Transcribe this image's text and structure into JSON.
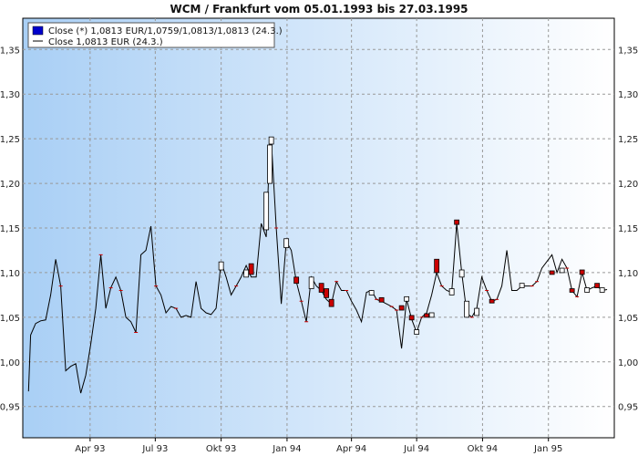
{
  "chart_data": {
    "type": "line",
    "title": "WCM / Frankfurt vom 05.01.1993 bis 27.03.1995",
    "xlabel": "",
    "ylabel": "",
    "ylim": [
      0.915,
      1.385
    ],
    "y_ticks": [
      0.95,
      1.0,
      1.05,
      1.1,
      1.15,
      1.2,
      1.25,
      1.3,
      1.35
    ],
    "y_tick_labels": [
      "0,95",
      "1,00",
      "1,05",
      "1,10",
      "1,15",
      "1,20",
      "1,25",
      "1,30",
      "1,35"
    ],
    "x_ticks": [
      {
        "label": "Apr 93",
        "date": "1993-04-01"
      },
      {
        "label": "Jul 93",
        "date": "1993-07-01"
      },
      {
        "label": "Okt 93",
        "date": "1993-10-01"
      },
      {
        "label": "Jan 94",
        "date": "1994-01-01"
      },
      {
        "label": "Apr 94",
        "date": "1994-04-01"
      },
      {
        "label": "Jul 94",
        "date": "1994-07-01"
      },
      {
        "label": "Okt 94",
        "date": "1994-10-01"
      },
      {
        "label": "Jan 95",
        "date": "1995-01-01"
      }
    ],
    "x_range": [
      "1992-12-28",
      "1995-04-03"
    ],
    "grid": true,
    "legend_position": "top-left",
    "legend": [
      {
        "symbol": "box",
        "color": "#0000cc",
        "label": "Close (*) 1,0813 EUR/1,0759/1,0813/1,0813 (24.3.)"
      },
      {
        "symbol": "line",
        "color": "#000000",
        "label": "Close 1,0813 EUR (24.3.)"
      }
    ],
    "colors": {
      "up_candle": "#ffffff",
      "down_candle": "#cc0000",
      "line": "#000000",
      "background_left": "#a9cff5",
      "background_right": "#ffffff"
    },
    "series": [
      {
        "name": "Close",
        "points": [
          [
            "1993-01-05",
            0.967
          ],
          [
            "1993-01-08",
            1.03
          ],
          [
            "1993-01-15",
            1.043
          ],
          [
            "1993-01-22",
            1.046
          ],
          [
            "1993-01-29",
            1.047
          ],
          [
            "1993-02-05",
            1.075
          ],
          [
            "1993-02-12",
            1.115
          ],
          [
            "1993-02-19",
            1.085
          ],
          [
            "1993-02-26",
            0.99
          ],
          [
            "1993-03-05",
            0.995
          ],
          [
            "1993-03-12",
            0.998
          ],
          [
            "1993-03-19",
            0.965
          ],
          [
            "1993-03-26",
            0.985
          ],
          [
            "1993-04-02",
            1.02
          ],
          [
            "1993-04-09",
            1.06
          ],
          [
            "1993-04-16",
            1.12
          ],
          [
            "1993-04-23",
            1.06
          ],
          [
            "1993-04-30",
            1.083
          ],
          [
            "1993-05-07",
            1.095
          ],
          [
            "1993-05-14",
            1.08
          ],
          [
            "1993-05-21",
            1.05
          ],
          [
            "1993-05-28",
            1.045
          ],
          [
            "1993-06-04",
            1.033
          ],
          [
            "1993-06-11",
            1.12
          ],
          [
            "1993-06-18",
            1.125
          ],
          [
            "1993-06-25",
            1.152
          ],
          [
            "1993-07-02",
            1.085
          ],
          [
            "1993-07-09",
            1.075
          ],
          [
            "1993-07-16",
            1.055
          ],
          [
            "1993-07-23",
            1.062
          ],
          [
            "1993-07-30",
            1.06
          ],
          [
            "1993-08-06",
            1.05
          ],
          [
            "1993-08-13",
            1.052
          ],
          [
            "1993-08-20",
            1.05
          ],
          [
            "1993-08-27",
            1.09
          ],
          [
            "1993-09-03",
            1.06
          ],
          [
            "1993-09-10",
            1.055
          ],
          [
            "1993-09-17",
            1.053
          ],
          [
            "1993-09-24",
            1.06
          ],
          [
            "1993-10-01",
            1.112
          ],
          [
            "1993-10-08",
            1.095
          ],
          [
            "1993-10-15",
            1.075
          ],
          [
            "1993-10-22",
            1.085
          ],
          [
            "1993-10-29",
            1.095
          ],
          [
            "1993-11-05",
            1.108
          ],
          [
            "1993-11-12",
            1.095
          ],
          [
            "1993-11-19",
            1.095
          ],
          [
            "1993-11-26",
            1.155
          ],
          [
            "1993-12-03",
            1.14
          ],
          [
            "1993-12-08",
            1.243
          ],
          [
            "1993-12-10",
            1.25
          ],
          [
            "1993-12-17",
            1.15
          ],
          [
            "1993-12-24",
            1.065
          ],
          [
            "1993-12-31",
            1.135
          ],
          [
            "1994-01-07",
            1.125
          ],
          [
            "1994-01-14",
            1.09
          ],
          [
            "1994-01-21",
            1.068
          ],
          [
            "1994-01-28",
            1.045
          ],
          [
            "1994-02-04",
            1.095
          ],
          [
            "1994-02-11",
            1.085
          ],
          [
            "1994-02-18",
            1.08
          ],
          [
            "1994-02-25",
            1.07
          ],
          [
            "1994-03-04",
            1.065
          ],
          [
            "1994-03-11",
            1.09
          ],
          [
            "1994-03-18",
            1.08
          ],
          [
            "1994-03-25",
            1.08
          ],
          [
            "1994-04-01",
            1.068
          ],
          [
            "1994-04-08",
            1.058
          ],
          [
            "1994-04-15",
            1.045
          ],
          [
            "1994-04-22",
            1.078
          ],
          [
            "1994-04-29",
            1.08
          ],
          [
            "1994-05-06",
            1.07
          ],
          [
            "1994-05-13",
            1.068
          ],
          [
            "1994-05-20",
            1.065
          ],
          [
            "1994-05-27",
            1.062
          ],
          [
            "1994-06-03",
            1.058
          ],
          [
            "1994-06-10",
            1.015
          ],
          [
            "1994-06-17",
            1.07
          ],
          [
            "1994-06-24",
            1.048
          ],
          [
            "1994-07-01",
            1.033
          ],
          [
            "1994-07-08",
            1.05
          ],
          [
            "1994-07-15",
            1.055
          ],
          [
            "1994-07-22",
            1.075
          ],
          [
            "1994-07-29",
            1.1
          ],
          [
            "1994-08-05",
            1.085
          ],
          [
            "1994-08-12",
            1.08
          ],
          [
            "1994-08-19",
            1.078
          ],
          [
            "1994-08-26",
            1.155
          ],
          [
            "1994-09-02",
            1.1
          ],
          [
            "1994-09-09",
            1.055
          ],
          [
            "1994-09-16",
            1.05
          ],
          [
            "1994-09-23",
            1.06
          ],
          [
            "1994-09-30",
            1.095
          ],
          [
            "1994-10-07",
            1.08
          ],
          [
            "1994-10-14",
            1.068
          ],
          [
            "1994-10-21",
            1.07
          ],
          [
            "1994-10-28",
            1.085
          ],
          [
            "1994-11-04",
            1.125
          ],
          [
            "1994-11-11",
            1.08
          ],
          [
            "1994-11-18",
            1.08
          ],
          [
            "1994-11-25",
            1.085
          ],
          [
            "1994-12-02",
            1.085
          ],
          [
            "1994-12-09",
            1.085
          ],
          [
            "1994-12-16",
            1.09
          ],
          [
            "1994-12-23",
            1.105
          ],
          [
            "1995-01-06",
            1.12
          ],
          [
            "1995-01-13",
            1.1
          ],
          [
            "1995-01-20",
            1.115
          ],
          [
            "1995-01-27",
            1.105
          ],
          [
            "1995-02-03",
            1.08
          ],
          [
            "1995-02-10",
            1.073
          ],
          [
            "1995-02-17",
            1.1
          ],
          [
            "1995-02-24",
            1.08
          ],
          [
            "1995-03-03",
            1.083
          ],
          [
            "1995-03-10",
            1.085
          ],
          [
            "1995-03-17",
            1.08
          ],
          [
            "1995-03-24",
            1.081
          ]
        ]
      }
    ],
    "candles": [
      [
        "1993-10-01",
        1.103,
        1.112,
        "up"
      ],
      [
        "1993-11-05",
        1.095,
        1.103,
        "up"
      ],
      [
        "1993-11-12",
        1.11,
        1.098,
        "down"
      ],
      [
        "1993-12-03",
        1.148,
        1.19,
        "up"
      ],
      [
        "1993-12-08",
        1.2,
        1.243,
        "up"
      ],
      [
        "1993-12-10",
        1.244,
        1.252,
        "up"
      ],
      [
        "1993-12-31",
        1.128,
        1.138,
        "up"
      ],
      [
        "1994-01-14",
        1.095,
        1.088,
        "down"
      ],
      [
        "1994-02-04",
        1.082,
        1.095,
        "up"
      ],
      [
        "1994-02-18",
        1.088,
        1.078,
        "down"
      ],
      [
        "1994-02-25",
        1.082,
        1.072,
        "down"
      ],
      [
        "1994-03-04",
        1.07,
        1.062,
        "down"
      ],
      [
        "1994-04-29",
        1.075,
        1.08,
        "up"
      ],
      [
        "1994-05-13",
        1.072,
        1.067,
        "down"
      ],
      [
        "1994-06-10",
        1.063,
        1.058,
        "down"
      ],
      [
        "1994-06-17",
        1.068,
        1.073,
        "up"
      ],
      [
        "1994-06-24",
        1.052,
        1.047,
        "down"
      ],
      [
        "1994-07-01",
        1.031,
        1.036,
        "up"
      ],
      [
        "1994-07-15",
        1.054,
        1.05,
        "down"
      ],
      [
        "1994-07-22",
        1.05,
        1.055,
        "up"
      ],
      [
        "1994-07-29",
        1.115,
        1.1,
        "down"
      ],
      [
        "1994-08-26",
        1.159,
        1.154,
        "down"
      ],
      [
        "1994-08-19",
        1.075,
        1.082,
        "up"
      ],
      [
        "1994-09-02",
        1.095,
        1.103,
        "up"
      ],
      [
        "1994-09-09",
        1.05,
        1.068,
        "up"
      ],
      [
        "1994-09-23",
        1.052,
        1.06,
        "up"
      ],
      [
        "1994-10-14",
        1.07,
        1.066,
        "down"
      ],
      [
        "1994-11-25",
        1.083,
        1.088,
        "up"
      ],
      [
        "1995-01-06",
        1.102,
        1.098,
        "down"
      ],
      [
        "1995-01-20",
        1.1,
        1.105,
        "up"
      ],
      [
        "1995-02-03",
        1.082,
        1.078,
        "down"
      ],
      [
        "1995-02-17",
        1.103,
        1.098,
        "down"
      ],
      [
        "1995-02-24",
        1.078,
        1.083,
        "up"
      ],
      [
        "1995-03-10",
        1.088,
        1.083,
        "down"
      ],
      [
        "1995-03-17",
        1.078,
        1.083,
        "up"
      ]
    ],
    "markers": [
      "1993-02-19",
      "1993-04-16",
      "1993-04-30",
      "1993-05-14",
      "1993-06-04",
      "1993-07-02",
      "1993-07-30",
      "1993-10-22",
      "1993-12-17",
      "1994-01-21",
      "1994-01-28",
      "1994-03-11",
      "1994-03-25",
      "1994-05-06",
      "1994-05-27",
      "1994-06-03",
      "1994-07-08",
      "1994-08-05",
      "1994-09-16",
      "1994-10-07",
      "1994-10-21",
      "1994-12-09",
      "1994-12-16",
      "1995-01-27",
      "1995-02-10"
    ]
  }
}
